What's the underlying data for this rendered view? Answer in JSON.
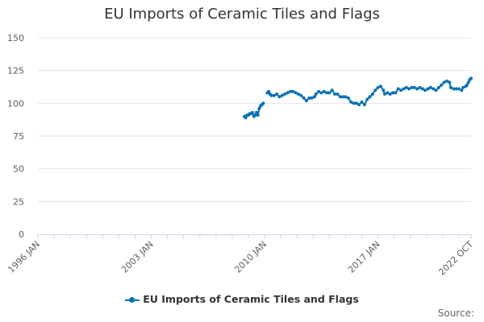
{
  "chart_data": {
    "type": "line",
    "title": "EU Imports of Ceramic Tiles and Flags",
    "xlabel": "",
    "ylabel": "",
    "ylim": [
      0,
      150
    ],
    "yticks": [
      0,
      25,
      50,
      75,
      100,
      125,
      150
    ],
    "xticks": [
      "1996 JAN",
      "2003 JAN",
      "2010 JAN",
      "2017 JAN",
      "2022 OCT"
    ],
    "grid": "horizontal",
    "legend": "bottom-center",
    "series": [
      {
        "name": "EU Imports of Ceramic Tiles and Flags",
        "color": "#0a71b4",
        "segments": [
          [
            [
              "2008-10",
              90
            ],
            [
              "2008-11",
              89
            ],
            [
              "2008-12",
              91
            ],
            [
              "2009-01",
              91
            ],
            [
              "2009-02",
              92
            ],
            [
              "2009-03",
              92
            ],
            [
              "2009-04",
              93
            ],
            [
              "2009-05",
              90
            ],
            [
              "2009-06",
              91
            ],
            [
              "2009-07",
              93
            ],
            [
              "2009-08",
              91
            ],
            [
              "2009-09",
              96
            ],
            [
              "2009-10",
              98
            ],
            [
              "2009-11",
              99
            ],
            [
              "2009-12",
              100
            ]
          ],
          [
            [
              "2010-03",
              108
            ],
            [
              "2010-04",
              109
            ],
            [
              "2010-05",
              107
            ],
            [
              "2010-06",
              106
            ],
            [
              "2010-08",
              106
            ],
            [
              "2010-10",
              107
            ],
            [
              "2010-12",
              105
            ],
            [
              "2011-02",
              106
            ],
            [
              "2011-04",
              107
            ],
            [
              "2011-06",
              108
            ],
            [
              "2011-08",
              109
            ],
            [
              "2011-10",
              109
            ],
            [
              "2011-12",
              108
            ],
            [
              "2012-02",
              107
            ],
            [
              "2012-04",
              106
            ],
            [
              "2012-06",
              104
            ],
            [
              "2012-08",
              102
            ],
            [
              "2012-10",
              104
            ],
            [
              "2012-12",
              104
            ],
            [
              "2013-02",
              105
            ],
            [
              "2013-03",
              107
            ],
            [
              "2013-05",
              109
            ],
            [
              "2013-07",
              108
            ],
            [
              "2013-09",
              109
            ],
            [
              "2013-11",
              108
            ],
            [
              "2014-01",
              108
            ],
            [
              "2014-03",
              110
            ],
            [
              "2014-05",
              107
            ],
            [
              "2014-07",
              107
            ],
            [
              "2014-09",
              105
            ],
            [
              "2014-11",
              105
            ],
            [
              "2015-01",
              105
            ],
            [
              "2015-03",
              104
            ],
            [
              "2015-05",
              101
            ],
            [
              "2015-07",
              100
            ],
            [
              "2015-09",
              100
            ],
            [
              "2015-11",
              99
            ],
            [
              "2016-01",
              101
            ],
            [
              "2016-03",
              99
            ],
            [
              "2016-05",
              103
            ],
            [
              "2016-07",
              105
            ],
            [
              "2016-09",
              107
            ],
            [
              "2016-11",
              110
            ],
            [
              "2017-01",
              112
            ],
            [
              "2017-03",
              113
            ],
            [
              "2017-05",
              110
            ],
            [
              "2017-06",
              107
            ],
            [
              "2017-08",
              108
            ],
            [
              "2017-10",
              107
            ],
            [
              "2017-12",
              108
            ],
            [
              "2018-02",
              108
            ],
            [
              "2018-04",
              111
            ],
            [
              "2018-06",
              110
            ],
            [
              "2018-08",
              111
            ],
            [
              "2018-10",
              112
            ],
            [
              "2018-12",
              111
            ],
            [
              "2019-02",
              112
            ],
            [
              "2019-04",
              112
            ],
            [
              "2019-06",
              111
            ],
            [
              "2019-08",
              112
            ],
            [
              "2019-10",
              111
            ],
            [
              "2019-12",
              110
            ],
            [
              "2020-02",
              111
            ],
            [
              "2020-04",
              112
            ],
            [
              "2020-06",
              111
            ],
            [
              "2020-08",
              110
            ],
            [
              "2020-10",
              112
            ],
            [
              "2020-12",
              114
            ],
            [
              "2021-02",
              116
            ],
            [
              "2021-04",
              117
            ],
            [
              "2021-06",
              116
            ],
            [
              "2021-07",
              112
            ],
            [
              "2021-09",
              111
            ],
            [
              "2021-11",
              111
            ],
            [
              "2022-01",
              111
            ],
            [
              "2022-03",
              110
            ],
            [
              "2022-04",
              112
            ],
            [
              "2022-06",
              113
            ],
            [
              "2022-07",
              114
            ],
            [
              "2022-08",
              116
            ],
            [
              "2022-09",
              118
            ],
            [
              "2022-10",
              119
            ]
          ]
        ]
      }
    ],
    "source_label": "Source:"
  }
}
